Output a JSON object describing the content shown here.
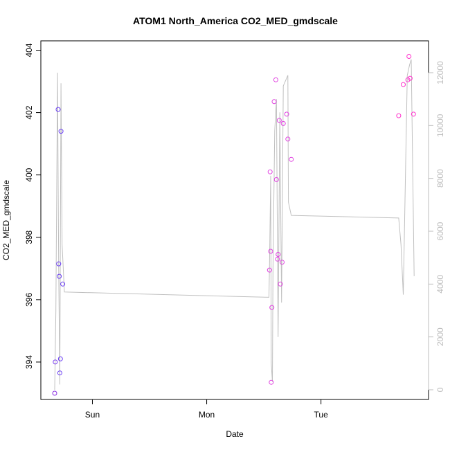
{
  "chart_data": {
    "type": "scatter",
    "title": "ATOM1 North_America CO2_MED_gmdscale",
    "xlabel": "Date",
    "ylabel": "CO2_MED_gmdscale",
    "x_unit": "day (0 = Sun 00:00)",
    "xlim": [
      -0.33,
      2.95
    ],
    "ylim": [
      392.8,
      404.3
    ],
    "y2lim": [
      -300,
      12800
    ],
    "x_ticks": [
      {
        "value": 0,
        "label": "Sun"
      },
      {
        "value": 1,
        "label": "Mon"
      },
      {
        "value": 2,
        "label": "Tue"
      }
    ],
    "y_ticks": [
      {
        "value": 394,
        "label": "394"
      },
      {
        "value": 396,
        "label": "396"
      },
      {
        "value": 398,
        "label": "398"
      },
      {
        "value": 400,
        "label": "400"
      },
      {
        "value": 402,
        "label": "402"
      },
      {
        "value": 404,
        "label": "404"
      }
    ],
    "y2_ticks": [
      {
        "value": 0,
        "label": "0"
      },
      {
        "value": 2000,
        "label": "2000"
      },
      {
        "value": 4000,
        "label": "4000"
      },
      {
        "value": 6000,
        "label": "6000"
      },
      {
        "value": 8000,
        "label": "8000"
      },
      {
        "value": 10000,
        "label": "10000"
      },
      {
        "value": 12000,
        "label": "12000"
      }
    ],
    "series": [
      {
        "kind": "points",
        "axis": "left",
        "points": [
          {
            "x": -0.33,
            "y": 393.0,
            "color": "#8a2be2"
          },
          {
            "x": -0.325,
            "y": 394.0,
            "color": "#7b3ff0"
          },
          {
            "x": -0.3,
            "y": 402.1,
            "color": "#6a3df5"
          },
          {
            "x": -0.295,
            "y": 397.15,
            "color": "#6a3df5"
          },
          {
            "x": -0.29,
            "y": 396.75,
            "color": "#6a3df5"
          },
          {
            "x": -0.285,
            "y": 393.65,
            "color": "#6a3df5"
          },
          {
            "x": -0.28,
            "y": 394.1,
            "color": "#6a3df5"
          },
          {
            "x": -0.275,
            "y": 401.4,
            "color": "#6a3df5"
          },
          {
            "x": -0.26,
            "y": 396.5,
            "color": "#6a3df5"
          },
          {
            "x": 1.55,
            "y": 396.95,
            "color": "#e040e0"
          },
          {
            "x": 1.555,
            "y": 400.1,
            "color": "#e040e0"
          },
          {
            "x": 1.56,
            "y": 397.55,
            "color": "#e040e0"
          },
          {
            "x": 1.565,
            "y": 393.35,
            "color": "#e040e0"
          },
          {
            "x": 1.57,
            "y": 395.75,
            "color": "#e040e0"
          },
          {
            "x": 1.59,
            "y": 402.35,
            "color": "#e040e0"
          },
          {
            "x": 1.605,
            "y": 403.05,
            "color": "#e040e0"
          },
          {
            "x": 1.61,
            "y": 399.85,
            "color": "#e040e0"
          },
          {
            "x": 1.62,
            "y": 397.3,
            "color": "#e040e0"
          },
          {
            "x": 1.625,
            "y": 397.45,
            "color": "#e040e0"
          },
          {
            "x": 1.635,
            "y": 401.75,
            "color": "#e040e0"
          },
          {
            "x": 1.645,
            "y": 396.5,
            "color": "#e040e0"
          },
          {
            "x": 1.66,
            "y": 397.2,
            "color": "#e040e0"
          },
          {
            "x": 1.67,
            "y": 401.65,
            "color": "#e040e0"
          },
          {
            "x": 1.7,
            "y": 401.95,
            "color": "#e040e0"
          },
          {
            "x": 1.71,
            "y": 401.15,
            "color": "#e040e0"
          },
          {
            "x": 1.74,
            "y": 400.5,
            "color": "#e040e0"
          },
          {
            "x": 2.68,
            "y": 401.9,
            "color": "#ff33cc"
          },
          {
            "x": 2.72,
            "y": 402.9,
            "color": "#ff33cc"
          },
          {
            "x": 2.76,
            "y": 403.05,
            "color": "#ff33cc"
          },
          {
            "x": 2.77,
            "y": 403.8,
            "color": "#ff33cc"
          },
          {
            "x": 2.78,
            "y": 403.1,
            "color": "#ff33cc"
          },
          {
            "x": 2.81,
            "y": 401.95,
            "color": "#ff33cc"
          }
        ]
      },
      {
        "kind": "line",
        "axis": "right",
        "color": "#c0c0c0",
        "points": [
          {
            "x": -0.33,
            "y": 0
          },
          {
            "x": -0.32,
            "y": 3000
          },
          {
            "x": -0.305,
            "y": 12000
          },
          {
            "x": -0.3,
            "y": 7800
          },
          {
            "x": -0.295,
            "y": 4500
          },
          {
            "x": -0.285,
            "y": 200
          },
          {
            "x": -0.275,
            "y": 11600
          },
          {
            "x": -0.265,
            "y": 5500
          },
          {
            "x": -0.245,
            "y": 3700
          },
          {
            "x": 1.545,
            "y": 3500
          },
          {
            "x": 1.55,
            "y": 4700
          },
          {
            "x": 1.56,
            "y": 8100
          },
          {
            "x": 1.565,
            "y": 1000
          },
          {
            "x": 1.575,
            "y": 300
          },
          {
            "x": 1.58,
            "y": 4600
          },
          {
            "x": 1.595,
            "y": 9800
          },
          {
            "x": 1.61,
            "y": 11000
          },
          {
            "x": 1.625,
            "y": 2000
          },
          {
            "x": 1.64,
            "y": 10500
          },
          {
            "x": 1.655,
            "y": 3300
          },
          {
            "x": 1.67,
            "y": 11500
          },
          {
            "x": 1.69,
            "y": 11700
          },
          {
            "x": 1.71,
            "y": 11900
          },
          {
            "x": 1.715,
            "y": 7100
          },
          {
            "x": 1.74,
            "y": 6600
          },
          {
            "x": 2.68,
            "y": 6500
          },
          {
            "x": 2.7,
            "y": 5500
          },
          {
            "x": 2.72,
            "y": 3600
          },
          {
            "x": 2.755,
            "y": 11900
          },
          {
            "x": 2.775,
            "y": 12300
          },
          {
            "x": 2.79,
            "y": 12500
          },
          {
            "x": 2.815,
            "y": 4300
          }
        ]
      }
    ]
  }
}
